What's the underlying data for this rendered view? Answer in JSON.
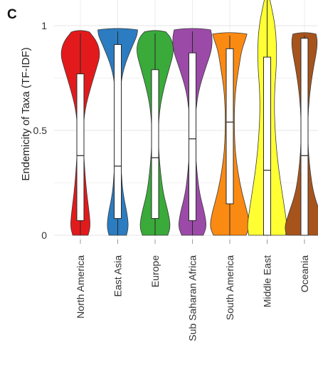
{
  "panel_label": "C",
  "chart_data": {
    "type": "violin",
    "title": "",
    "xlabel": "",
    "ylabel": "Endemicity of Taxa (TF-IDF)",
    "ylim": [
      0,
      1.0
    ],
    "yticks": [
      {
        "value": 0,
        "label": "0"
      },
      {
        "value": 0.5,
        "label": "0.5"
      },
      {
        "value": 1,
        "label": "1"
      }
    ],
    "grid": true,
    "legend": "none",
    "categories": [
      "North America",
      "East Asia",
      "Europe",
      "Sub Saharan Africa",
      "South America",
      "Middle East",
      "Oceania"
    ],
    "series": [
      {
        "category": "North America",
        "color": "#e31a1c",
        "min": 0.0,
        "max": 0.97,
        "q1": 0.07,
        "median": 0.38,
        "q3": 0.77,
        "density": [
          [
            0.0,
            0.17
          ],
          [
            0.04,
            0.22
          ],
          [
            0.1,
            0.2
          ],
          [
            0.2,
            0.14
          ],
          [
            0.3,
            0.1
          ],
          [
            0.4,
            0.07
          ],
          [
            0.5,
            0.06
          ],
          [
            0.6,
            0.1
          ],
          [
            0.7,
            0.22
          ],
          [
            0.8,
            0.36
          ],
          [
            0.86,
            0.44
          ],
          [
            0.92,
            0.38
          ],
          [
            0.97,
            0.2
          ]
        ]
      },
      {
        "category": "East Asia",
        "color": "#2b7cc0",
        "min": 0.0,
        "max": 0.98,
        "q1": 0.08,
        "median": 0.33,
        "q3": 0.91,
        "density": [
          [
            0.0,
            0.22
          ],
          [
            0.04,
            0.27
          ],
          [
            0.1,
            0.24
          ],
          [
            0.2,
            0.13
          ],
          [
            0.3,
            0.09
          ],
          [
            0.4,
            0.06
          ],
          [
            0.5,
            0.05
          ],
          [
            0.6,
            0.05
          ],
          [
            0.7,
            0.06
          ],
          [
            0.8,
            0.15
          ],
          [
            0.9,
            0.36
          ],
          [
            0.95,
            0.48
          ],
          [
            0.98,
            0.5
          ]
        ]
      },
      {
        "category": "Europe",
        "color": "#3aaa3a",
        "min": 0.0,
        "max": 0.97,
        "q1": 0.08,
        "median": 0.37,
        "q3": 0.79,
        "density": [
          [
            0.0,
            0.28
          ],
          [
            0.04,
            0.34
          ],
          [
            0.1,
            0.3
          ],
          [
            0.2,
            0.18
          ],
          [
            0.3,
            0.12
          ],
          [
            0.4,
            0.08
          ],
          [
            0.5,
            0.07
          ],
          [
            0.6,
            0.1
          ],
          [
            0.7,
            0.19
          ],
          [
            0.8,
            0.32
          ],
          [
            0.88,
            0.42
          ],
          [
            0.94,
            0.36
          ],
          [
            0.97,
            0.24
          ]
        ]
      },
      {
        "category": "Sub Saharan Africa",
        "color": "#9b4aa8",
        "min": 0.0,
        "max": 0.98,
        "q1": 0.07,
        "median": 0.46,
        "q3": 0.87,
        "density": [
          [
            0.0,
            0.26
          ],
          [
            0.04,
            0.34
          ],
          [
            0.1,
            0.3
          ],
          [
            0.2,
            0.17
          ],
          [
            0.3,
            0.11
          ],
          [
            0.4,
            0.07
          ],
          [
            0.5,
            0.06
          ],
          [
            0.6,
            0.08
          ],
          [
            0.7,
            0.16
          ],
          [
            0.8,
            0.32
          ],
          [
            0.88,
            0.46
          ],
          [
            0.94,
            0.48
          ],
          [
            0.98,
            0.44
          ]
        ]
      },
      {
        "category": "South America",
        "color": "#fb8a12",
        "min": 0.0,
        "max": 0.96,
        "q1": 0.15,
        "median": 0.54,
        "q3": 0.89,
        "density": [
          [
            0.0,
            0.36
          ],
          [
            0.04,
            0.44
          ],
          [
            0.1,
            0.4
          ],
          [
            0.2,
            0.27
          ],
          [
            0.3,
            0.18
          ],
          [
            0.4,
            0.12
          ],
          [
            0.5,
            0.1
          ],
          [
            0.6,
            0.1
          ],
          [
            0.7,
            0.13
          ],
          [
            0.8,
            0.2
          ],
          [
            0.88,
            0.26
          ],
          [
            0.93,
            0.34
          ],
          [
            0.96,
            0.38
          ]
        ]
      },
      {
        "category": "Middle East",
        "color": "#ffff33",
        "min": 0.0,
        "max": 1.18,
        "q1": 0.0,
        "median": 0.31,
        "q3": 0.85,
        "density": [
          [
            0.0,
            0.46
          ],
          [
            0.04,
            0.5
          ],
          [
            0.1,
            0.46
          ],
          [
            0.2,
            0.38
          ],
          [
            0.3,
            0.3
          ],
          [
            0.4,
            0.24
          ],
          [
            0.5,
            0.2
          ],
          [
            0.6,
            0.18
          ],
          [
            0.7,
            0.19
          ],
          [
            0.8,
            0.23
          ],
          [
            0.9,
            0.24
          ],
          [
            1.0,
            0.2
          ],
          [
            1.08,
            0.12
          ],
          [
            1.14,
            0.05
          ],
          [
            1.18,
            0.01
          ]
        ]
      },
      {
        "category": "Oceania",
        "color": "#a6541c",
        "min": 0.0,
        "max": 0.96,
        "q1": 0.0,
        "median": 0.38,
        "q3": 0.94,
        "density": [
          [
            0.0,
            0.56
          ],
          [
            0.04,
            0.62
          ],
          [
            0.1,
            0.5
          ],
          [
            0.2,
            0.28
          ],
          [
            0.3,
            0.18
          ],
          [
            0.4,
            0.12
          ],
          [
            0.5,
            0.1
          ],
          [
            0.6,
            0.12
          ],
          [
            0.7,
            0.18
          ],
          [
            0.8,
            0.28
          ],
          [
            0.88,
            0.38
          ],
          [
            0.93,
            0.4
          ],
          [
            0.96,
            0.36
          ]
        ]
      }
    ]
  }
}
